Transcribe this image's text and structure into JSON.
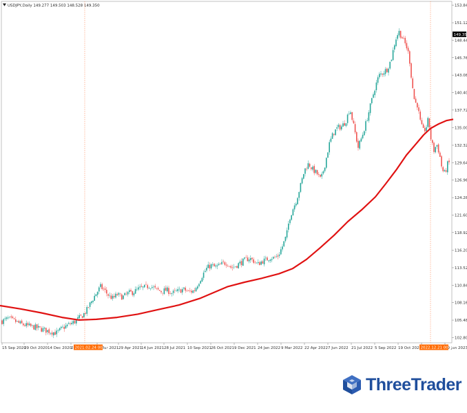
{
  "header": {
    "symbol_icon": "down-triangle-icon",
    "text": "USDJPY,Daily  149.277 149.503 148.528 149.350"
  },
  "brand": {
    "name": "ThreeTrader",
    "icon": "cube-logo-icon"
  },
  "colors": {
    "bull": "#26a69a",
    "bear": "#ef5350",
    "ma": "#e01212",
    "marker_bg": "#ff6a00",
    "vline": "#ff8c5a",
    "price_box": "#000000"
  },
  "chart_data": {
    "type": "candlestick",
    "symbol": "USDJPY",
    "timeframe": "Daily",
    "ylim": [
      102.0,
      154.4
    ],
    "y_ticks": [
      102.8,
      105.48,
      108.16,
      110.84,
      113.52,
      116.2,
      118.92,
      121.6,
      124.28,
      126.96,
      129.64,
      132.32,
      135.0,
      137.72,
      140.4,
      143.08,
      145.76,
      148.44,
      151.12,
      153.84
    ],
    "y_tick_labels": [
      "102.800",
      "105.480",
      "108.160",
      "110.840",
      "113.520",
      "116.200",
      "118.920",
      "121.600",
      "124.280",
      "126.960",
      "129.640",
      "132.320",
      "135.000",
      "137.720",
      "140.400",
      "143.080",
      "145.760",
      "148.440",
      "151.120",
      "153.840"
    ],
    "x_labels": [
      "15 Sep 2020",
      "29 Oct 2020",
      "14 Dec 2020",
      "2",
      "1 Mar 2021",
      "29 Apr 2021",
      "14 Jun 2021",
      "28 Jul 2021",
      "10 Sep 2021",
      "26 Oct 2021",
      "9 Dec 2021",
      "24 Jan 2022",
      "9 Mar 2022",
      "22 Apr 2022",
      "7 Jun 2022",
      "21 Jul 2022",
      "5 Sep 2022",
      "19 Oct 2022",
      "2",
      "19 Jan 2023"
    ],
    "current_price": 149.35,
    "current_price_label": "149.350",
    "markers": [
      {
        "label": "2021.02.24 00:00"
      },
      {
        "label": "2022.12.21 00:00"
      }
    ],
    "moving_average": {
      "points": [
        [
          0,
          107.7
        ],
        [
          30,
          107.2
        ],
        [
          60,
          106.6
        ],
        [
          90,
          105.9
        ],
        [
          115,
          105.5
        ],
        [
          140,
          105.6
        ],
        [
          170,
          105.9
        ],
        [
          200,
          106.4
        ],
        [
          230,
          107.1
        ],
        [
          260,
          107.8
        ],
        [
          290,
          108.8
        ],
        [
          310,
          109.7
        ],
        [
          330,
          110.6
        ],
        [
          355,
          111.3
        ],
        [
          380,
          111.9
        ],
        [
          405,
          112.6
        ],
        [
          425,
          113.4
        ],
        [
          445,
          114.8
        ],
        [
          465,
          116.6
        ],
        [
          485,
          118.5
        ],
        [
          505,
          120.6
        ],
        [
          525,
          122.4
        ],
        [
          545,
          124.4
        ],
        [
          560,
          126.4
        ],
        [
          575,
          128.5
        ],
        [
          590,
          130.8
        ],
        [
          603,
          132.4
        ],
        [
          615,
          133.9
        ],
        [
          625,
          134.9
        ],
        [
          637,
          135.6
        ],
        [
          648,
          136.1
        ],
        [
          658,
          136.3
        ]
      ]
    },
    "price_path": [
      [
        0,
        105.2
      ],
      [
        12,
        105.7
      ],
      [
        22,
        105.3
      ],
      [
        30,
        104.9
      ],
      [
        40,
        104.6
      ],
      [
        50,
        104.4
      ],
      [
        60,
        104.1
      ],
      [
        70,
        103.8
      ],
      [
        82,
        103.5
      ],
      [
        90,
        104.2
      ],
      [
        100,
        104.8
      ],
      [
        108,
        105.2
      ],
      [
        115,
        105.8
      ],
      [
        120,
        106.2
      ],
      [
        126,
        107.0
      ],
      [
        132,
        108.2
      ],
      [
        138,
        109.3
      ],
      [
        146,
        110.6
      ],
      [
        152,
        110.0
      ],
      [
        158,
        109.2
      ],
      [
        164,
        108.8
      ],
      [
        170,
        109.4
      ],
      [
        178,
        109.0
      ],
      [
        186,
        109.6
      ],
      [
        194,
        109.8
      ],
      [
        202,
        110.3
      ],
      [
        210,
        110.5
      ],
      [
        218,
        110.8
      ],
      [
        226,
        110.2
      ],
      [
        234,
        109.9
      ],
      [
        242,
        110.1
      ],
      [
        250,
        109.6
      ],
      [
        258,
        109.9
      ],
      [
        266,
        110.2
      ],
      [
        274,
        109.8
      ],
      [
        282,
        110.0
      ],
      [
        288,
        111.2
      ],
      [
        294,
        112.4
      ],
      [
        300,
        113.4
      ],
      [
        306,
        113.9
      ],
      [
        312,
        113.6
      ],
      [
        318,
        113.8
      ],
      [
        324,
        114.2
      ],
      [
        330,
        114.3
      ],
      [
        336,
        113.5
      ],
      [
        342,
        113.8
      ],
      [
        348,
        114.2
      ],
      [
        356,
        114.7
      ],
      [
        362,
        115.0
      ],
      [
        368,
        114.6
      ],
      [
        374,
        114.0
      ],
      [
        380,
        114.5
      ],
      [
        386,
        114.7
      ],
      [
        392,
        115.1
      ],
      [
        398,
        115.0
      ],
      [
        404,
        115.4
      ],
      [
        410,
        116.8
      ],
      [
        416,
        118.5
      ],
      [
        420,
        121.0
      ],
      [
        425,
        122.5
      ],
      [
        430,
        123.8
      ],
      [
        436,
        126.0
      ],
      [
        442,
        128.5
      ],
      [
        448,
        129.5
      ],
      [
        454,
        128.6
      ],
      [
        460,
        128.0
      ],
      [
        466,
        127.0
      ],
      [
        472,
        129.5
      ],
      [
        478,
        132.5
      ],
      [
        484,
        134.2
      ],
      [
        490,
        135.0
      ],
      [
        496,
        135.2
      ],
      [
        502,
        136.0
      ],
      [
        508,
        138.0
      ],
      [
        514,
        135.0
      ],
      [
        520,
        132.0
      ],
      [
        526,
        133.8
      ],
      [
        532,
        136.0
      ],
      [
        538,
        138.5
      ],
      [
        544,
        141.0
      ],
      [
        550,
        143.0
      ],
      [
        556,
        143.5
      ],
      [
        562,
        144.0
      ],
      [
        568,
        145.5
      ],
      [
        574,
        148.5
      ],
      [
        579,
        149.8
      ],
      [
        584,
        148.8
      ],
      [
        590,
        147.5
      ],
      [
        594,
        146.0
      ],
      [
        598,
        142.0
      ],
      [
        602,
        139.0
      ],
      [
        606,
        138.5
      ],
      [
        610,
        136.0
      ],
      [
        614,
        134.5
      ],
      [
        618,
        134.8
      ],
      [
        622,
        136.4
      ],
      [
        626,
        133.0
      ],
      [
        630,
        131.5
      ],
      [
        634,
        132.5
      ],
      [
        638,
        131.0
      ],
      [
        642,
        128.5
      ],
      [
        646,
        128.0
      ],
      [
        650,
        129.5
      ],
      [
        655,
        129.8
      ]
    ]
  }
}
